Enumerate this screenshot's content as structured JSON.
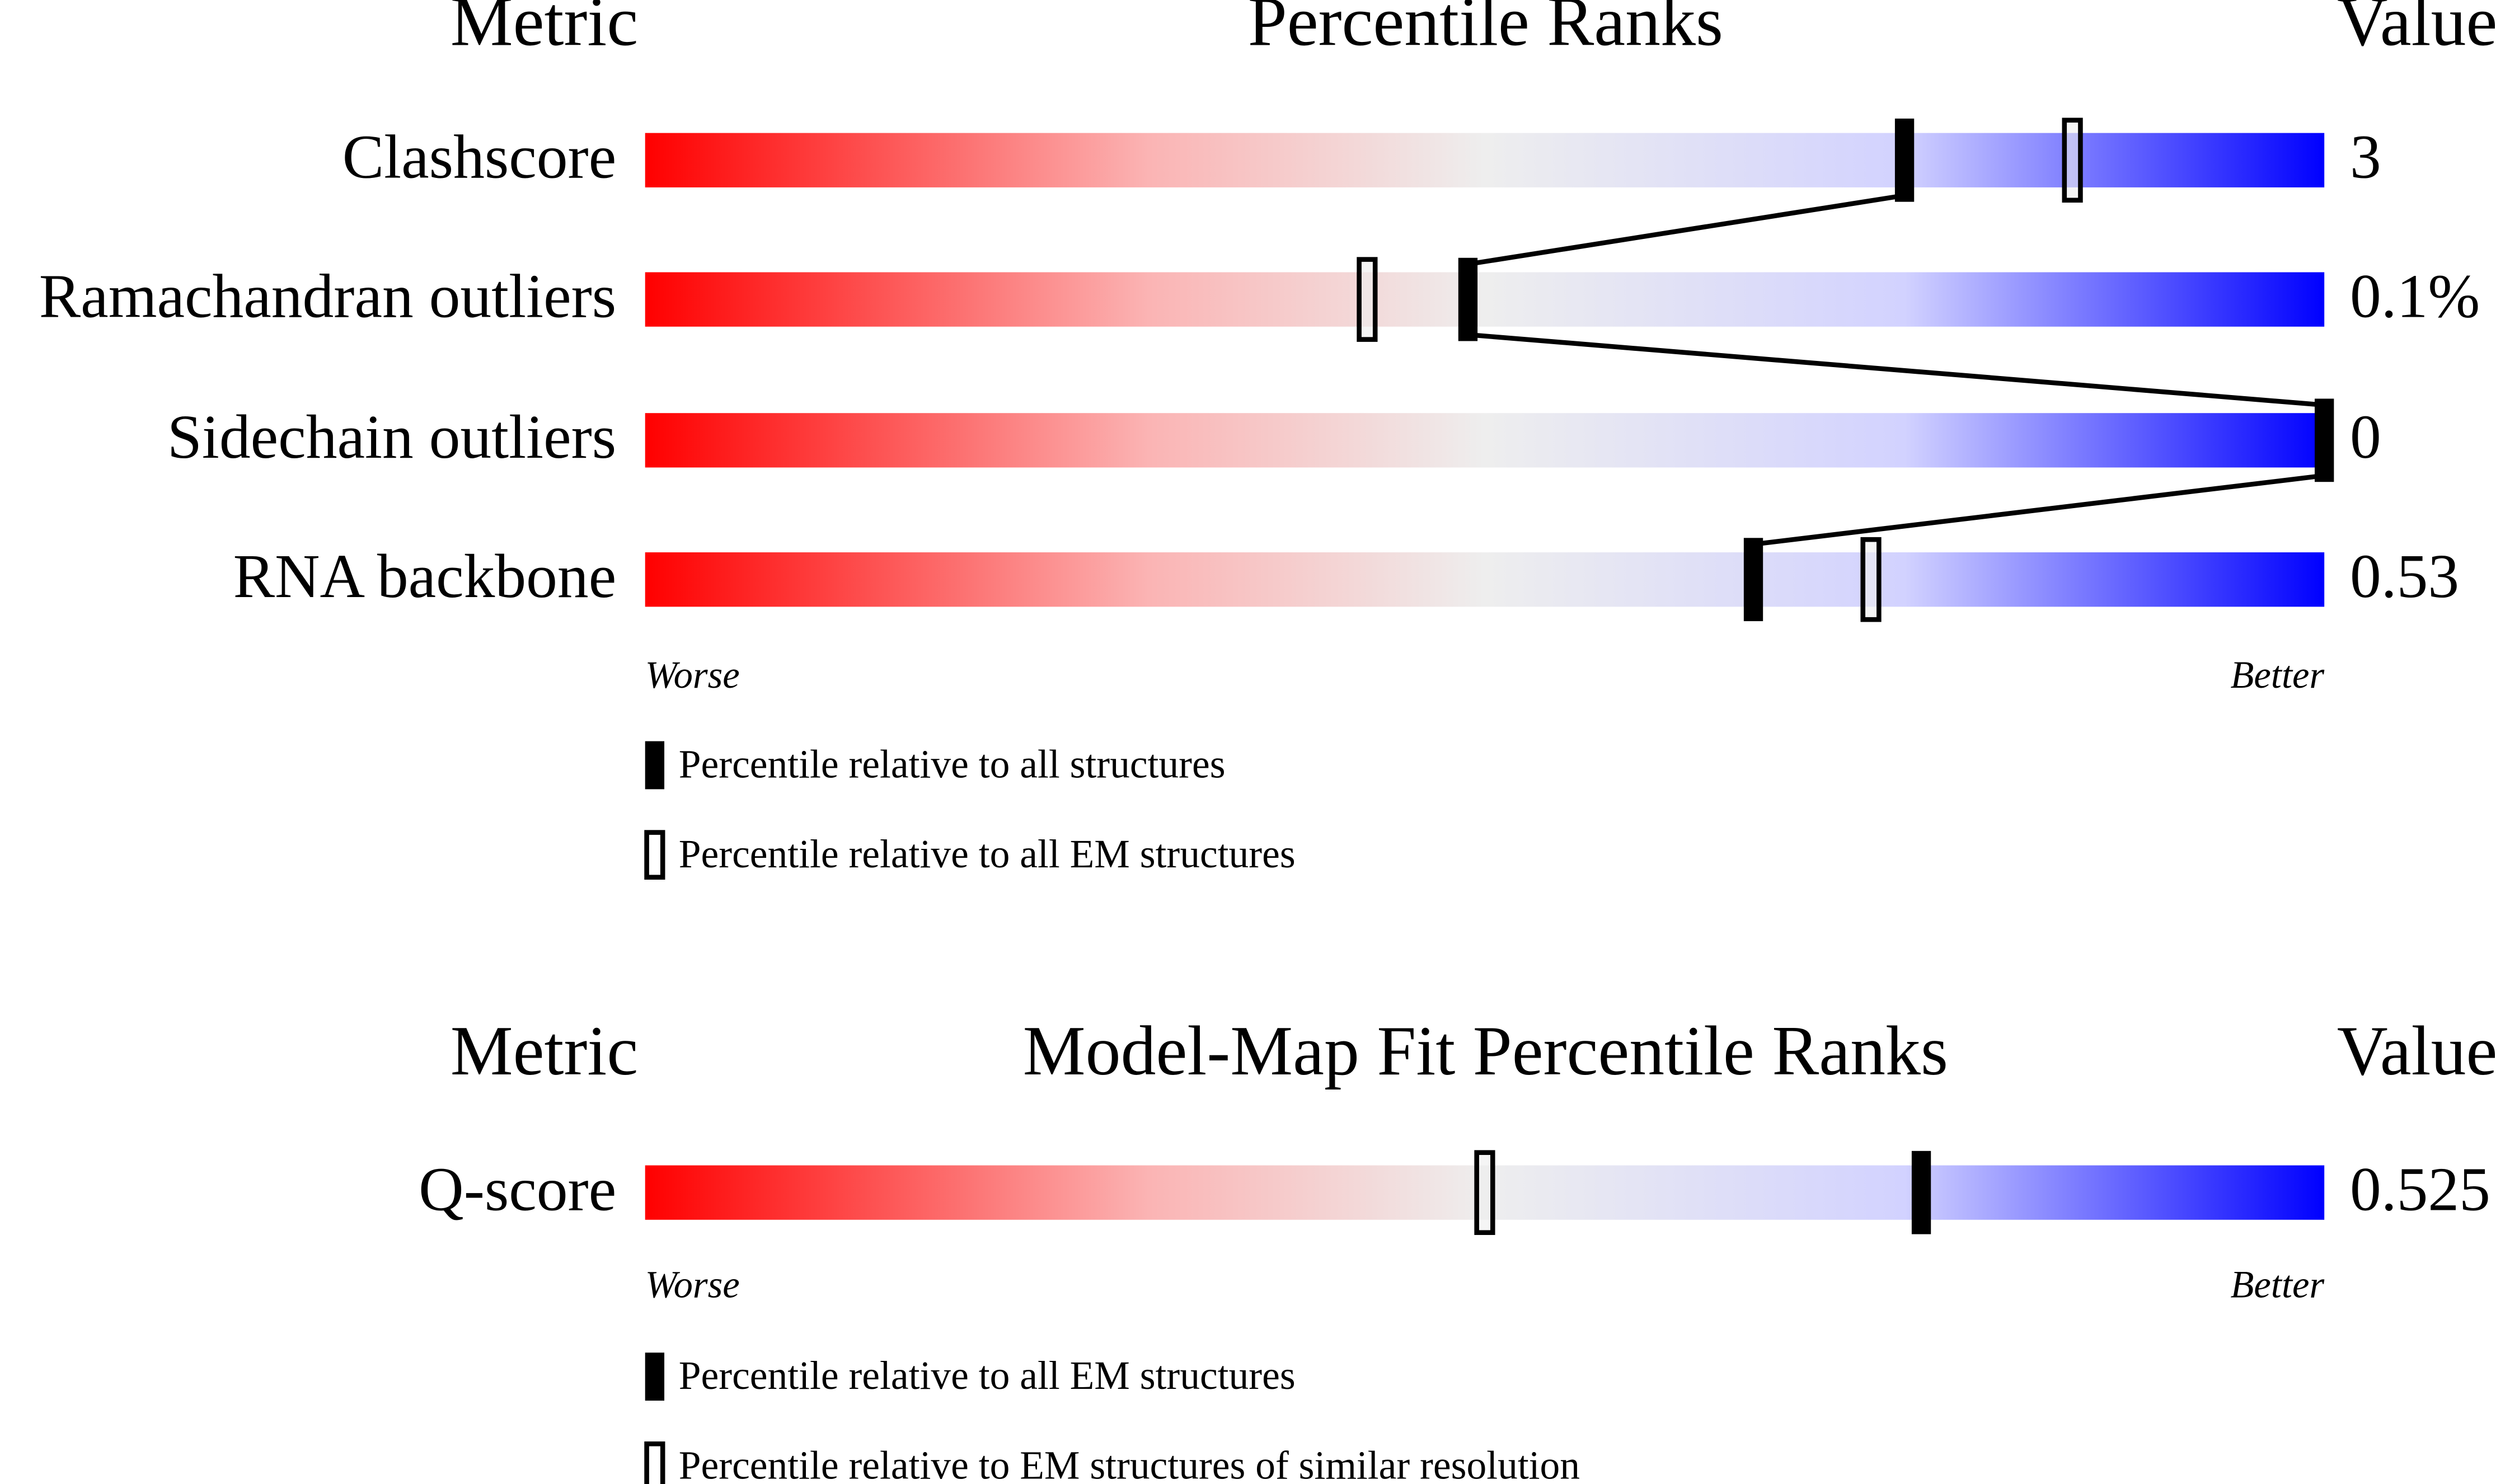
{
  "panels": [
    {
      "headers": {
        "metric": "Metric",
        "title": "Percentile Ranks",
        "value": "Value"
      },
      "xlim": [
        0,
        100
      ],
      "rows": [
        {
          "metric": "Clashscore",
          "value": "3",
          "filled": 75,
          "hollow": 85
        },
        {
          "metric": "Ramachandran outliers",
          "value": "0.1%",
          "filled": 49,
          "hollow": 43
        },
        {
          "metric": "Sidechain outliers",
          "value": "0",
          "filled": 100,
          "hollow": null
        },
        {
          "metric": "RNA backbone",
          "value": "0.53",
          "filled": 66,
          "hollow": 73
        }
      ],
      "worse": "Worse",
      "better": "Better",
      "legend": {
        "filled": "Percentile relative to all structures",
        "hollow": "Percentile relative to all EM structures"
      },
      "connect": true
    },
    {
      "headers": {
        "metric": "Metric",
        "title": "Model-Map Fit Percentile Ranks",
        "value": "Value"
      },
      "xlim": [
        0,
        100
      ],
      "rows": [
        {
          "metric": "Q-score",
          "value": "0.525",
          "filled": 76,
          "hollow": 50
        }
      ],
      "worse": "Worse",
      "better": "Better",
      "legend": {
        "filled": "Percentile relative to all EM structures",
        "hollow": "Percentile relative to EM structures of similar resolution"
      },
      "connect": false
    }
  ]
}
